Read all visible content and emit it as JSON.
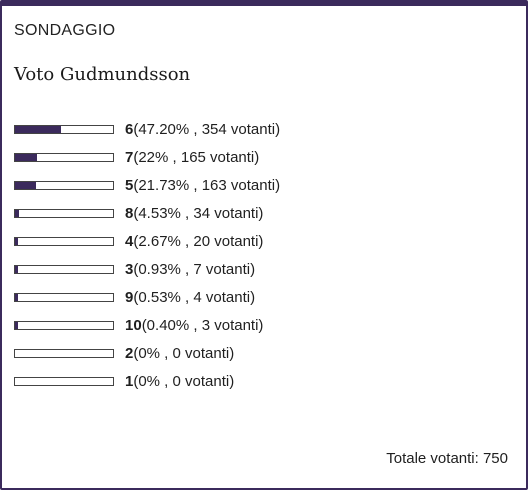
{
  "poll": {
    "label": "SONDAGGIO",
    "title": "Voto Gudmundsson",
    "total_label": "Totale votanti: 750",
    "accent_color": "#3b2a5c",
    "options": [
      {
        "number": "6",
        "detail": "(47.20% , 354 votanti)",
        "percent": 47.2
      },
      {
        "number": "7",
        "detail": "(22% , 165 votanti)",
        "percent": 22
      },
      {
        "number": "5",
        "detail": "(21.73% , 163 votanti)",
        "percent": 21.73
      },
      {
        "number": "8",
        "detail": "(4.53% , 34 votanti)",
        "percent": 4.53
      },
      {
        "number": "4",
        "detail": "(2.67% , 20 votanti)",
        "percent": 2.67
      },
      {
        "number": "3",
        "detail": "(0.93% , 7 votanti)",
        "percent": 0.93
      },
      {
        "number": "9",
        "detail": "(0.53% , 4 votanti)",
        "percent": 0.53
      },
      {
        "number": "10",
        "detail": "(0.40% , 3 votanti)",
        "percent": 0.4
      },
      {
        "number": "2",
        "detail": "(0% , 0 votanti)",
        "percent": 0
      },
      {
        "number": "1",
        "detail": "(0% , 0 votanti)",
        "percent": 0
      }
    ]
  }
}
